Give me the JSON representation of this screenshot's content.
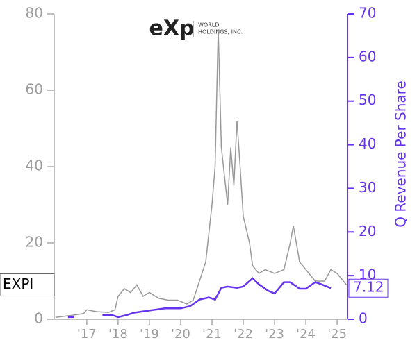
{
  "logo": {
    "mark": "eXp",
    "line1": "WORLD",
    "line2": "HOLDINGS, INC."
  },
  "ticker_label": "EXPI",
  "chart_data": {
    "type": "line",
    "y2_label": "Q Revenue Per Share",
    "xlim": [
      2015.96,
      2025.33
    ],
    "xticks": [
      {
        "value": 2017,
        "label": "'17"
      },
      {
        "value": 2018,
        "label": "'18"
      },
      {
        "value": 2019,
        "label": "'19"
      },
      {
        "value": 2020,
        "label": "'20"
      },
      {
        "value": 2021,
        "label": "'21"
      },
      {
        "value": 2022,
        "label": "'22"
      },
      {
        "value": 2023,
        "label": "'23"
      },
      {
        "value": 2024,
        "label": "'24"
      },
      {
        "value": 2025,
        "label": "'25"
      }
    ],
    "ylim": [
      0,
      80
    ],
    "yticks": [
      0,
      20,
      40,
      60,
      80
    ],
    "y2lim": [
      0,
      70
    ],
    "y2ticks": [
      0,
      10,
      20,
      30,
      40,
      50,
      60,
      70
    ],
    "series": [
      {
        "name": "EXPI",
        "color": "#999999",
        "x": [
          2016.0,
          2016.5,
          2016.9,
          2017.0,
          2017.3,
          2017.7,
          2017.9,
          2018.0,
          2018.2,
          2018.4,
          2018.6,
          2018.8,
          2019.0,
          2019.3,
          2019.6,
          2019.9,
          2020.2,
          2020.4,
          2020.6,
          2020.8,
          2021.0,
          2021.1,
          2021.2,
          2021.3,
          2021.5,
          2021.6,
          2021.7,
          2021.8,
          2021.9,
          2022.0,
          2022.2,
          2022.3,
          2022.5,
          2022.7,
          2023.0,
          2023.3,
          2023.5,
          2023.6,
          2023.8,
          2024.0,
          2024.3,
          2024.6,
          2024.8,
          2025.0,
          2025.3
        ],
        "values": [
          0.5,
          1,
          1.5,
          2.5,
          2,
          1.8,
          2.5,
          6,
          8,
          7,
          9,
          6,
          7,
          5.5,
          5,
          5,
          4,
          5,
          10,
          15,
          30,
          40,
          76,
          45,
          30,
          45,
          35,
          52,
          40,
          27,
          20,
          14,
          12,
          13,
          12,
          13,
          20,
          24.5,
          15,
          13,
          10,
          10,
          13,
          12,
          9
        ]
      },
      {
        "name": "Q Revenue Per Share",
        "color": "#6633ee",
        "axis": "y2",
        "x": [
          2016.4,
          2016.6,
          2017.0,
          2017.5,
          2017.8,
          2018.0,
          2018.3,
          2018.5,
          2019.0,
          2019.5,
          2020.0,
          2020.3,
          2020.6,
          2020.9,
          2021.1,
          2021.3,
          2021.5,
          2021.8,
          2022.0,
          2022.3,
          2022.5,
          2022.8,
          2023.0,
          2023.3,
          2023.5,
          2023.8,
          2024.0,
          2024.3,
          2024.5,
          2024.8
        ],
        "values": [
          0.5,
          0.5,
          null,
          1,
          1,
          0.5,
          1,
          1.5,
          2,
          2.5,
          2.5,
          3,
          4.5,
          5,
          4.5,
          7.2,
          7.5,
          7.2,
          7.5,
          9.4,
          8,
          6.5,
          5.9,
          8.5,
          8.5,
          7,
          7,
          8.5,
          8,
          7.12
        ]
      }
    ]
  }
}
